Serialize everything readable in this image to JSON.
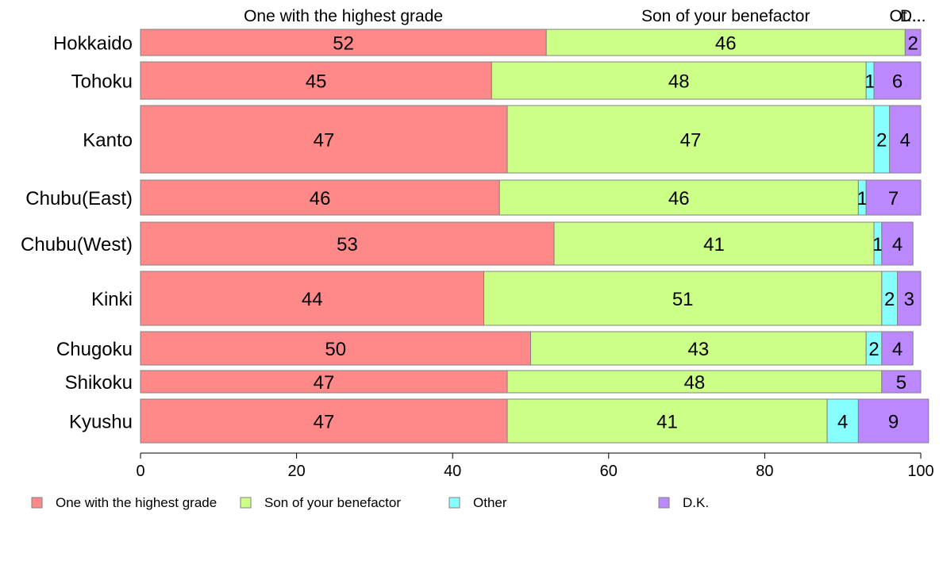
{
  "chart_data": {
    "type": "bar",
    "orientation": "horizontal",
    "stacked": true,
    "variable_width": true,
    "title": "",
    "xlabel": "",
    "ylabel": "",
    "xlim": [
      0,
      100
    ],
    "xticks": [
      0,
      20,
      40,
      60,
      80,
      100
    ],
    "grid": false,
    "legend_position": "bottom",
    "categories": [
      "Hokkaido",
      "Tohoku",
      "Kanto",
      "Chubu(East)",
      "Chubu(West)",
      "Kinki",
      "Chugoku",
      "Shikoku",
      "Kyushu"
    ],
    "series": [
      {
        "name": "One with the highest grade",
        "color": "#FF8888",
        "values": [
          52,
          45,
          47,
          46,
          53,
          44,
          50,
          47,
          47
        ]
      },
      {
        "name": "Son of your benefactor",
        "color": "#CCFF88",
        "values": [
          46,
          48,
          47,
          46,
          41,
          51,
          43,
          48,
          41
        ]
      },
      {
        "name": "Other",
        "color": "#88FFFF",
        "values": [
          0,
          1,
          2,
          1,
          1,
          2,
          2,
          0,
          4
        ]
      },
      {
        "name": "D.K.",
        "color": "#BB88FF",
        "values": [
          2,
          6,
          4,
          7,
          4,
          3,
          4,
          5,
          9
        ]
      }
    ],
    "top_labels": [
      "One with the highest grade",
      "Son of your benefactor",
      "Ot...",
      "D..."
    ]
  }
}
